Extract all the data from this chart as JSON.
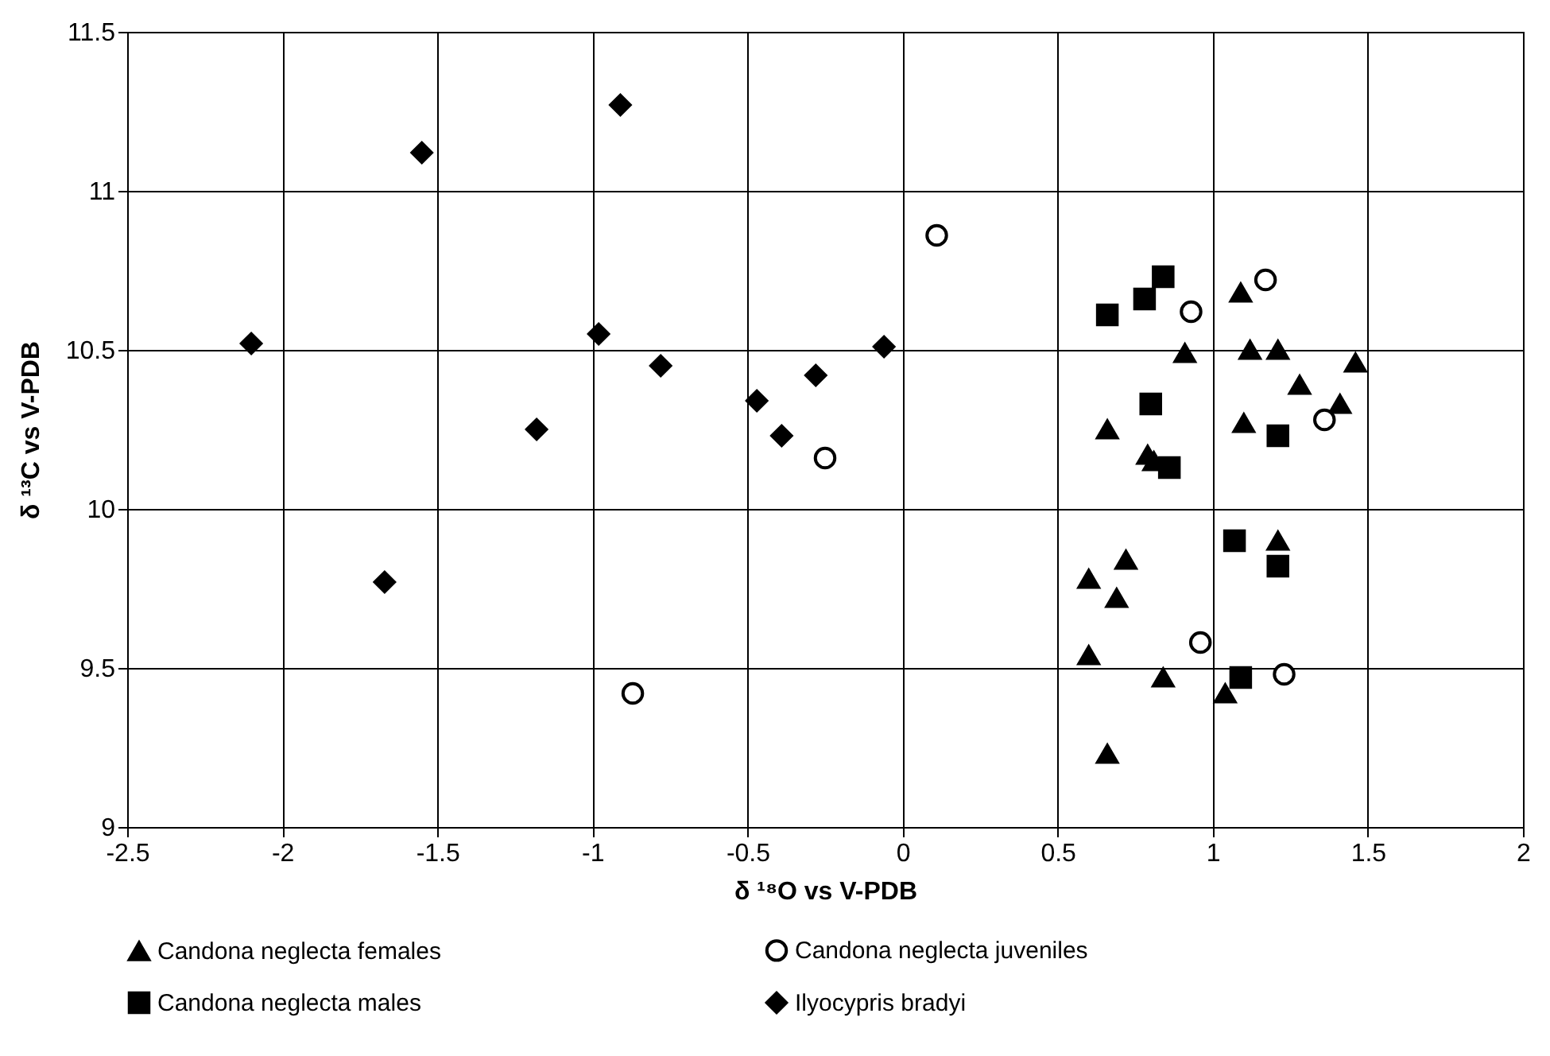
{
  "chart_data": {
    "type": "scatter",
    "xlabel": "δ ¹⁸O     vs V-PDB",
    "ylabel": "δ ¹³C     vs V-PDB",
    "xlim": [
      -2.5,
      2
    ],
    "xticks": [
      -2.5,
      -2,
      -1.5,
      -1,
      -0.5,
      0,
      0.5,
      1,
      1.5,
      2
    ],
    "ylim": [
      9,
      11.5
    ],
    "yticks": [
      9,
      9.5,
      10,
      10.5,
      11,
      11.5
    ],
    "grid": true,
    "legend": "bottom",
    "series": [
      {
        "name": "Candona neglecta females",
        "color": "#000000",
        "marker": "triangle",
        "x": [
          1.09,
          0.91,
          1.12,
          1.21,
          1.46,
          1.28,
          1.41,
          1.1,
          0.66,
          0.79,
          0.81,
          1.21,
          0.72,
          0.6,
          0.69,
          0.6,
          0.84,
          1.04,
          0.66
        ],
        "values": [
          10.68,
          10.49,
          10.5,
          10.5,
          10.46,
          10.39,
          10.33,
          10.27,
          10.25,
          10.17,
          10.15,
          9.9,
          9.84,
          9.78,
          9.72,
          9.54,
          9.47,
          9.42,
          9.23
        ]
      },
      {
        "name": "Candona neglecta juveniles",
        "color": "#000000",
        "marker": "circle",
        "x": [
          0.11,
          1.17,
          0.93,
          1.36,
          -0.25,
          -0.87,
          0.96,
          1.23
        ],
        "values": [
          10.86,
          10.72,
          10.62,
          10.28,
          10.16,
          9.42,
          9.58,
          9.48
        ]
      },
      {
        "name": "Candona neglecta males",
        "color": "#000000",
        "marker": "square",
        "x": [
          0.84,
          0.78,
          0.66,
          0.8,
          1.21,
          0.86,
          1.07,
          1.21,
          1.09
        ],
        "values": [
          10.73,
          10.66,
          10.61,
          10.33,
          10.23,
          10.13,
          9.9,
          9.82,
          9.47
        ]
      },
      {
        "name": "Ilyocypris bradyi",
        "color": "#000000",
        "marker": "diamond",
        "x": [
          -0.91,
          -1.55,
          -2.1,
          -0.98,
          -0.78,
          -0.28,
          -0.06,
          -0.47,
          -0.39,
          -1.18,
          -1.67
        ],
        "values": [
          11.27,
          11.12,
          10.52,
          10.55,
          10.45,
          10.42,
          10.51,
          10.34,
          10.23,
          10.25,
          9.77
        ]
      }
    ]
  }
}
